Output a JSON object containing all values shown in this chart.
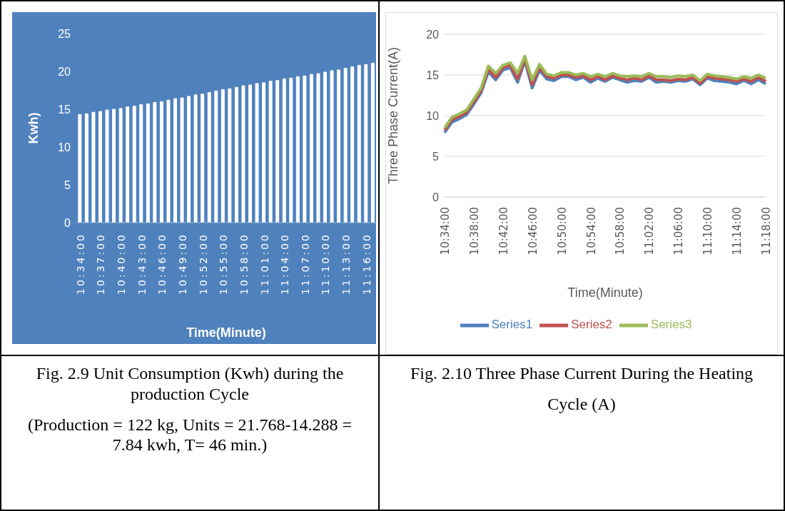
{
  "chart_data": [
    {
      "type": "bar",
      "title": "Fig. 2.9 Unit Consumption (Kwh) during the production Cycle",
      "subtitle": "(Production = 122 kg, Units = 21.768-14.288 = 7.84 kwh, T= 46 min.)",
      "xlabel": "Time(Minute)",
      "ylabel": "Kwh)",
      "categories": [
        "10:34:00",
        null,
        null,
        "10:37:00",
        null,
        null,
        "10:40:00",
        null,
        null,
        "10:43:00",
        null,
        null,
        "10:46:00",
        null,
        null,
        "10:49:00",
        null,
        null,
        "10:52:00",
        null,
        null,
        "10:55:00",
        null,
        null,
        "10:58:00",
        null,
        null,
        "11:01:00",
        null,
        null,
        "11:04:00",
        null,
        null,
        "11:07:00",
        null,
        null,
        "11:10:00",
        null,
        null,
        "11:13:00",
        null,
        null,
        "11:16:00",
        null
      ],
      "values": [
        14.3,
        14.4,
        14.6,
        14.7,
        14.9,
        15.0,
        15.1,
        15.3,
        15.4,
        15.6,
        15.7,
        15.9,
        16.0,
        16.2,
        16.4,
        16.5,
        16.7,
        16.9,
        17.0,
        17.2,
        17.4,
        17.6,
        17.7,
        17.9,
        18.1,
        18.2,
        18.4,
        18.5,
        18.7,
        18.8,
        19.0,
        19.1,
        19.3,
        19.4,
        19.6,
        19.7,
        19.9,
        20.1,
        20.2,
        20.4,
        20.6,
        20.8,
        20.9,
        21.1
      ],
      "color": "#ffffff",
      "ylim": [
        0,
        25
      ],
      "yticks": [
        0,
        5,
        10,
        15,
        20,
        25
      ],
      "grid": false,
      "legend": false
    },
    {
      "type": "line",
      "title": "Fig. 2.10 Three Phase Current During the Heating",
      "subtitle": "Cycle (A)",
      "xlabel": "Time(Minute)",
      "ylabel": "Three Phase Current(A)",
      "categories": [
        "10:34:00",
        null,
        null,
        null,
        "10:38:00",
        null,
        null,
        null,
        "10:42:00",
        null,
        null,
        null,
        "10:46:00",
        null,
        null,
        null,
        "10:50:00",
        null,
        null,
        null,
        "10:54:00",
        null,
        null,
        null,
        "10:58:00",
        null,
        null,
        null,
        "11:02:00",
        null,
        null,
        null,
        "11:06:00",
        null,
        null,
        null,
        "11:10:00",
        null,
        null,
        null,
        "11:14:00",
        null,
        null,
        null,
        "11:18:00"
      ],
      "series": [
        {
          "name": "Series1",
          "color": "#4f81bd",
          "values": [
            7.9,
            9.2,
            9.6,
            10.1,
            11.4,
            12.8,
            15.4,
            14.4,
            15.6,
            15.9,
            14.1,
            16.7,
            13.4,
            15.6,
            14.5,
            14.3,
            14.8,
            14.8,
            14.4,
            14.7,
            14.1,
            14.6,
            14.2,
            14.7,
            14.4,
            14.1,
            14.3,
            14.2,
            14.7,
            14.1,
            14.2,
            14.1,
            14.3,
            14.2,
            14.5,
            13.8,
            14.6,
            14.3,
            14.2,
            14.1,
            13.9,
            14.3,
            13.9,
            14.4,
            13.9
          ]
        },
        {
          "name": "Series2",
          "color": "#c0504d",
          "values": [
            8.2,
            9.5,
            9.9,
            10.4,
            11.7,
            13.1,
            15.7,
            14.7,
            15.9,
            16.2,
            14.5,
            17.0,
            13.8,
            15.9,
            14.8,
            14.6,
            15.0,
            15.0,
            14.7,
            14.9,
            14.4,
            14.8,
            14.4,
            14.9,
            14.6,
            14.4,
            14.6,
            14.4,
            14.9,
            14.4,
            14.4,
            14.3,
            14.5,
            14.4,
            14.7,
            14.0,
            14.8,
            14.6,
            14.5,
            14.4,
            14.2,
            14.5,
            14.2,
            14.7,
            14.2
          ]
        },
        {
          "name": "Series3",
          "color": "#9bbb59",
          "values": [
            8.5,
            9.8,
            10.2,
            10.7,
            12.0,
            13.4,
            16.1,
            15.2,
            16.2,
            16.5,
            15.2,
            17.3,
            14.4,
            16.3,
            15.1,
            14.9,
            15.3,
            15.3,
            15.0,
            15.2,
            14.8,
            15.1,
            14.8,
            15.2,
            14.9,
            14.8,
            14.9,
            14.8,
            15.2,
            14.8,
            14.8,
            14.7,
            14.9,
            14.8,
            15.0,
            14.3,
            15.1,
            14.9,
            14.8,
            14.7,
            14.5,
            14.8,
            14.6,
            15.0,
            14.6
          ]
        }
      ],
      "ylim": [
        0,
        20
      ],
      "yticks": [
        0,
        5,
        10,
        15,
        20
      ],
      "grid": "y",
      "legend": "bottom",
      "marker": "none",
      "line_style": "solid"
    }
  ]
}
